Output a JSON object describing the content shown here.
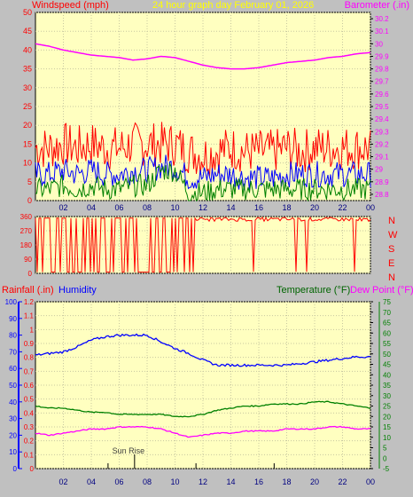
{
  "chart_data": [
    {
      "type": "line",
      "title": "24 hour graph day   February 01, 2026",
      "left_axis_label": "Windspeed (mph)",
      "right_axis_label": "Barometer (.in)",
      "left_axis": {
        "ylim": [
          0,
          50
        ],
        "ticks": [
          0,
          5,
          10,
          15,
          20,
          25,
          30,
          35,
          40,
          45,
          50
        ]
      },
      "right_axis": {
        "ylim": [
          28.75,
          30.25
        ],
        "ticks": [
          "28.8",
          "28.9",
          "29",
          "29.1",
          "29.2",
          "29.3",
          "29.4",
          "29.5",
          "29.6",
          "29.7",
          "29.8",
          "29.9",
          "30",
          "30.1",
          "30.2"
        ]
      },
      "x_ticks": [
        "02",
        "04",
        "06",
        "08",
        "10",
        "12",
        "14",
        "16",
        "18",
        "20",
        "22",
        "00"
      ],
      "x_range_hours": [
        0,
        24
      ],
      "grid": true,
      "series": [
        {
          "color": "#ff00ff",
          "axis": "right",
          "hours": [
            0,
            1,
            2,
            3,
            4,
            5,
            6,
            7,
            8,
            9,
            10,
            11,
            12,
            13,
            14,
            15,
            16,
            17,
            18,
            19,
            20,
            21,
            22,
            23,
            24
          ],
          "values": [
            30.0,
            29.98,
            29.95,
            29.93,
            29.91,
            29.9,
            29.89,
            29.87,
            29.88,
            29.9,
            29.89,
            29.86,
            29.83,
            29.81,
            29.8,
            29.8,
            29.81,
            29.83,
            29.85,
            29.86,
            29.87,
            29.89,
            29.9,
            29.92,
            29.93
          ]
        },
        {
          "color": "#ff0000",
          "axis": "left",
          "hours": [
            0,
            1,
            2,
            3,
            4,
            5,
            6,
            7,
            8,
            9,
            10,
            11,
            12,
            13,
            14,
            15,
            16,
            17,
            18,
            19,
            20,
            21,
            22,
            23,
            24
          ],
          "values": [
            14,
            14,
            15,
            14,
            15,
            14,
            14,
            15,
            15,
            15,
            15,
            13,
            12,
            13,
            14,
            13,
            13,
            13,
            14,
            13,
            14,
            14,
            14,
            14,
            14
          ]
        },
        {
          "color": "#0000ff",
          "axis": "left",
          "hours": [
            0,
            1,
            2,
            3,
            4,
            5,
            6,
            7,
            8,
            9,
            10,
            11,
            12,
            13,
            14,
            15,
            16,
            17,
            18,
            19,
            20,
            21,
            22,
            23,
            24
          ],
          "values": [
            7,
            7,
            8,
            7,
            8,
            7,
            7,
            8,
            8,
            9,
            9,
            6,
            6,
            7,
            7,
            6,
            6,
            6,
            7,
            7,
            7,
            7,
            7,
            7,
            7
          ]
        },
        {
          "color": "#008000",
          "axis": "left",
          "hours": [
            0,
            1,
            2,
            3,
            4,
            5,
            6,
            7,
            8,
            9,
            10,
            11,
            12,
            13,
            14,
            15,
            16,
            17,
            18,
            19,
            20,
            21,
            22,
            23,
            24
          ],
          "values": [
            3,
            3,
            4,
            3,
            4,
            3,
            3,
            4,
            4,
            8,
            8,
            2,
            2,
            3,
            3,
            3,
            3,
            3,
            3,
            3,
            3,
            3,
            3,
            3,
            3
          ]
        }
      ]
    },
    {
      "type": "scatter",
      "side_labels": [
        "N",
        "W",
        "S",
        "E",
        "N"
      ],
      "ylim": [
        0,
        360
      ],
      "y_ticks": [
        0,
        90,
        180,
        270,
        360
      ],
      "x_ticks": [
        "02",
        "04",
        "06",
        "08",
        "10",
        "12",
        "14",
        "16",
        "18",
        "20",
        "22",
        "00"
      ],
      "series": [
        {
          "color": "#ff0000",
          "hours": [
            0,
            1,
            2,
            3,
            4,
            5,
            6,
            7,
            8,
            9,
            10,
            11,
            12,
            13,
            14,
            15,
            16,
            17,
            18,
            19,
            20,
            21,
            22,
            23,
            24
          ],
          "values": [
            350,
            5,
            350,
            5,
            350,
            10,
            355,
            5,
            350,
            355,
            355,
            350,
            345,
            345,
            340,
            340,
            340,
            335,
            340,
            345,
            340,
            345,
            340,
            345,
            340
          ]
        }
      ]
    },
    {
      "type": "line",
      "label_rain": "Rainfall (.in)",
      "label_humidity": "Humidity",
      "label_temperature": "Temperature (°F)",
      "label_dewpoint": "Dew Point (°F)",
      "rain_axis": {
        "ylim": [
          0,
          1.2
        ],
        "ticks": [
          "0",
          "0.1",
          "0.2",
          "0.3",
          "0.4",
          "0.5",
          "0.6",
          "0.7",
          "0.8",
          "0.9",
          "1",
          "1.1",
          "1.2"
        ]
      },
      "humidity_axis": {
        "ylim": [
          0,
          100
        ],
        "ticks": [
          "0",
          "10",
          "20",
          "30",
          "40",
          "50",
          "60",
          "70",
          "80",
          "90",
          "100"
        ]
      },
      "temp_axis": {
        "ylim": [
          -5,
          75
        ],
        "ticks": [
          "-5",
          "0",
          "5",
          "10",
          "15",
          "20",
          "25",
          "30",
          "35",
          "40",
          "45",
          "50",
          "55",
          "60",
          "65",
          "70",
          "75"
        ]
      },
      "x_ticks": [
        "02",
        "04",
        "06",
        "08",
        "10",
        "12",
        "14",
        "16",
        "18",
        "20",
        "22",
        "00"
      ],
      "annotation": "Sun Rise",
      "series": [
        {
          "color": "#0000ff",
          "axis": "humidity",
          "hours": [
            0,
            1,
            2,
            3,
            4,
            5,
            6,
            7,
            8,
            9,
            10,
            11,
            12,
            13,
            14,
            15,
            16,
            17,
            18,
            19,
            20,
            21,
            22,
            23,
            24
          ],
          "values": [
            68,
            69,
            70,
            73,
            77,
            79,
            80,
            80,
            80,
            76,
            72,
            69,
            65,
            62,
            62,
            62,
            62,
            62,
            62,
            63,
            64,
            65,
            66,
            67,
            67
          ]
        },
        {
          "color": "#008000",
          "axis": "temp",
          "hours": [
            0,
            1,
            2,
            3,
            4,
            5,
            6,
            7,
            8,
            9,
            10,
            11,
            12,
            13,
            14,
            15,
            16,
            17,
            18,
            19,
            20,
            21,
            22,
            23,
            24
          ],
          "values": [
            25,
            24,
            24,
            23,
            22,
            22,
            21,
            21,
            21,
            21,
            20,
            20,
            21,
            23,
            24,
            25,
            25,
            26,
            26,
            26,
            27,
            27,
            26,
            25,
            24
          ]
        },
        {
          "color": "#ff00ff",
          "axis": "temp",
          "hours": [
            0,
            1,
            2,
            3,
            4,
            5,
            6,
            7,
            8,
            9,
            10,
            11,
            12,
            13,
            14,
            15,
            16,
            17,
            18,
            19,
            20,
            21,
            22,
            23,
            24
          ],
          "values": [
            12,
            11,
            12,
            13,
            14,
            14,
            15,
            15,
            15,
            14,
            12,
            10,
            11,
            12,
            12,
            13,
            13,
            13,
            14,
            14,
            14,
            15,
            15,
            14,
            14
          ]
        }
      ]
    }
  ]
}
